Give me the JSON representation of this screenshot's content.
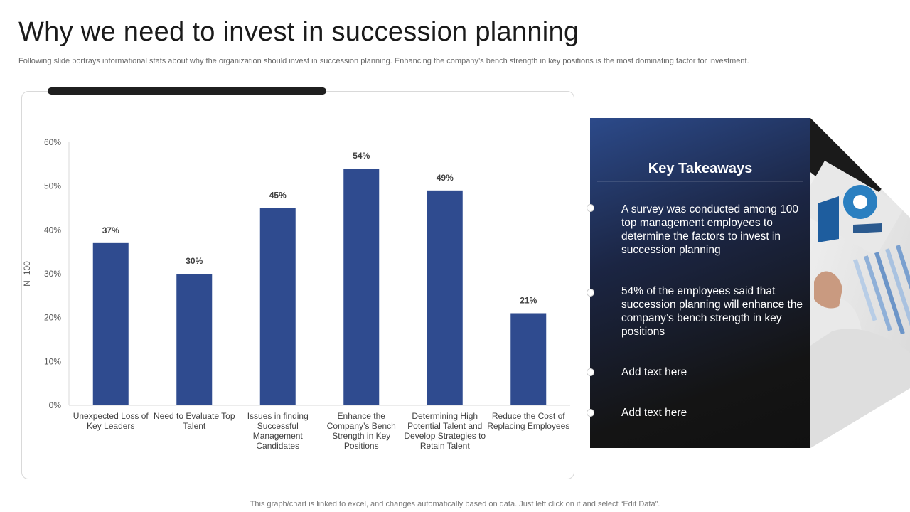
{
  "slide": {
    "title": "Why we need to invest in succession planning",
    "subtitle": "Following slide portrays informational stats about why the organization should invest in succession planning. Enhancing the company’s bench strength in key positions is the most dominating factor for investment.",
    "footnote": "This graph/chart is linked to excel,  and changes automatically based on data. Just left click on it and select “Edit Data”."
  },
  "chart_data": {
    "type": "bar",
    "categories": [
      [
        "Unexpected Loss of",
        "Key Leaders"
      ],
      [
        "Need to Evaluate Top",
        "Talent"
      ],
      [
        "Issues in finding",
        "Successful",
        "Management",
        "Candidates"
      ],
      [
        "Enhance the",
        "Company’s Bench",
        "Strength in Key",
        "Positions"
      ],
      [
        "Determining High",
        "Potential Talent and",
        "Develop Strategies to",
        "Retain Talent"
      ],
      [
        "Reduce the Cost of",
        "Replacing Employees"
      ]
    ],
    "values": [
      37,
      30,
      45,
      54,
      49,
      21
    ],
    "data_labels": [
      "37%",
      "30%",
      "45%",
      "54%",
      "49%",
      "21%"
    ],
    "ylabel": "N=100",
    "ylim": [
      0,
      60
    ],
    "yticks": [
      0,
      10,
      20,
      30,
      40,
      50,
      60
    ],
    "ytick_labels": [
      "0%",
      "10%",
      "20%",
      "30%",
      "40%",
      "50%",
      "60%"
    ],
    "bar_color": "#2f4b8f",
    "grid": false,
    "legend": "none"
  },
  "takeaways": {
    "title": "Key Takeaways",
    "items": [
      "A survey  was conducted among 100 top management employees to determine the factors to invest in succession planning",
      "54% of the employees said that succession planning will enhance the company’s bench strength in key positions",
      "Add text here",
      "Add text here"
    ]
  },
  "colors": {
    "accent_bar": "#1f1f1f",
    "panel_dark": "#141414",
    "panel_blue": "#2c4a8a"
  }
}
